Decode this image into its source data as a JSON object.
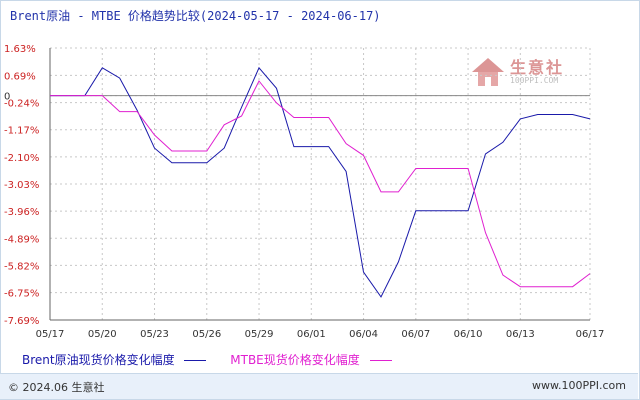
{
  "title": "Brent原油 - MTBE 价格趋势比较(2024-05-17 - 2024-06-17)",
  "watermark": {
    "name": "生意社",
    "url": "100PPI.COM"
  },
  "legend": {
    "series1": "Brent原油现货价格变化幅度",
    "series2": "MTBE现货价格变化幅度"
  },
  "footer": {
    "copyright": "© 2024.06 生意社",
    "site": "www.100PPI.com"
  },
  "colors": {
    "series1": "#1a1aaa",
    "series2": "#e020d0",
    "ytick": "#cc2222",
    "grid": "#c8c8c8",
    "axis": "#666666"
  },
  "chart_data": {
    "type": "line",
    "xlabel": "",
    "ylabel": "",
    "ylim": [
      -7.69,
      1.63
    ],
    "xlim": [
      "05/17",
      "06/17"
    ],
    "y_ticks": [
      "1.63%",
      "0.69%",
      "0",
      "-0.24%",
      "-1.17%",
      "-2.10%",
      "-3.03%",
      "-3.96%",
      "-4.89%",
      "-5.82%",
      "-6.75%",
      "-7.69%"
    ],
    "x_ticks": [
      "05/17",
      "05/20",
      "05/23",
      "05/26",
      "05/29",
      "06/01",
      "06/04",
      "06/07",
      "06/10",
      "06/13",
      "06/17"
    ],
    "grid": true,
    "legend_position": "bottom",
    "x": [
      "05/17",
      "05/18",
      "05/19",
      "05/20",
      "05/21",
      "05/22",
      "05/23",
      "05/24",
      "05/25",
      "05/26",
      "05/27",
      "05/28",
      "05/29",
      "05/30",
      "05/31",
      "06/01",
      "06/02",
      "06/03",
      "06/04",
      "06/05",
      "06/06",
      "06/07",
      "06/08",
      "06/09",
      "06/10",
      "06/11",
      "06/12",
      "06/13",
      "06/14",
      "06/15",
      "06/16",
      "06/17"
    ],
    "series": [
      {
        "name": "Brent原油现货价格变化幅度",
        "values": [
          0,
          0,
          0,
          0.95,
          0.6,
          -0.5,
          -1.8,
          -2.3,
          -2.3,
          -2.3,
          -1.8,
          -0.4,
          0.95,
          0.25,
          -1.75,
          -1.75,
          -1.75,
          -2.6,
          -6.05,
          -6.9,
          -5.7,
          -3.95,
          -3.95,
          -3.95,
          -3.95,
          -2.0,
          -1.6,
          -0.8,
          -0.65,
          -0.65,
          -0.65,
          -0.8
        ]
      },
      {
        "name": "MTBE现货价格变化幅度",
        "values": [
          0,
          0,
          0,
          0,
          -0.55,
          -0.55,
          -1.35,
          -1.9,
          -1.9,
          -1.9,
          -1.0,
          -0.7,
          0.5,
          -0.25,
          -0.75,
          -0.75,
          -0.75,
          -1.65,
          -2.05,
          -3.3,
          -3.3,
          -2.5,
          -2.5,
          -2.5,
          -2.5,
          -4.7,
          -6.15,
          -6.55,
          -6.55,
          -6.55,
          -6.55,
          -6.1
        ]
      }
    ]
  }
}
